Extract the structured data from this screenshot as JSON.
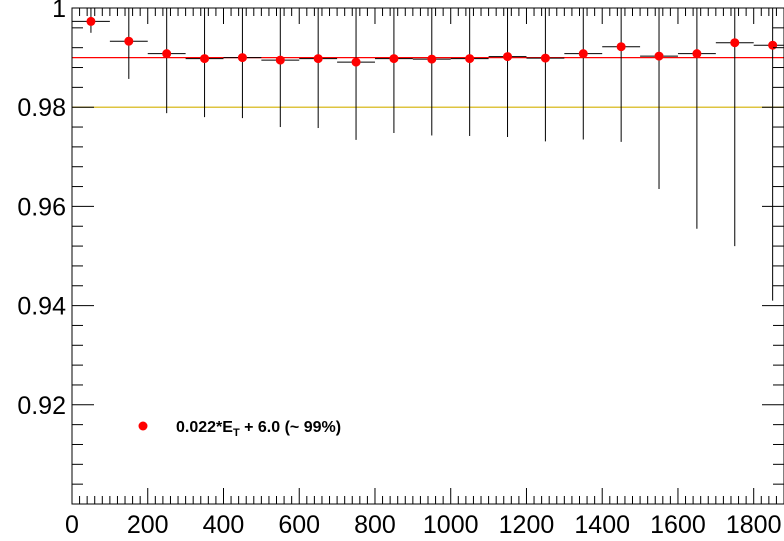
{
  "chart_data": {
    "type": "scatter",
    "title": "",
    "xlabel": "",
    "ylabel": "",
    "xlim": [
      0,
      1880
    ],
    "ylim": [
      0.9,
      1.0
    ],
    "x_ticks": [
      0,
      200,
      400,
      600,
      800,
      1000,
      1200,
      1400,
      1600,
      1800
    ],
    "y_ticks": [
      0.92,
      0.94,
      0.96,
      0.98,
      1
    ],
    "x_tick_labels": [
      "0",
      "200",
      "400",
      "600",
      "800",
      "1000",
      "1200",
      "1400",
      "1600",
      "1800"
    ],
    "y_tick_labels": [
      "0.92",
      "0.94",
      "0.96",
      "0.98",
      "1"
    ],
    "series": [
      {
        "name": "0.022*E_T + 6.0 (~ 99%)",
        "color": "#ff0000",
        "x": [
          50,
          150,
          250,
          350,
          450,
          550,
          650,
          750,
          850,
          950,
          1050,
          1150,
          1250,
          1350,
          1450,
          1550,
          1650,
          1750,
          1850
        ],
        "xerr": [
          50,
          50,
          50,
          50,
          50,
          50,
          50,
          50,
          50,
          50,
          50,
          50,
          50,
          50,
          50,
          50,
          50,
          50,
          50
        ],
        "y": [
          0.9973,
          0.9933,
          0.9908,
          0.9898,
          0.99,
          0.9895,
          0.9898,
          0.9891,
          0.9898,
          0.9897,
          0.9898,
          0.9902,
          0.9899,
          0.9908,
          0.9922,
          0.9903,
          0.9908,
          0.993,
          0.9925
        ],
        "y_low": [
          0.995,
          0.9857,
          0.9788,
          0.978,
          0.9778,
          0.976,
          0.9758,
          0.9734,
          0.9748,
          0.9743,
          0.9742,
          0.974,
          0.9731,
          0.9735,
          0.973,
          0.9635,
          0.9555,
          0.952,
          0.941
        ],
        "y_high": [
          1.0,
          1.0,
          1.0,
          1.0,
          1.0,
          1.0,
          1.0,
          1.0,
          1.0,
          1.0,
          1.0,
          1.0,
          1.0,
          1.0,
          1.0,
          1.0,
          1.0,
          1.0,
          1.0
        ]
      }
    ],
    "reference_lines": [
      {
        "y": 0.99,
        "color": "#ff0000"
      },
      {
        "y": 0.98,
        "color": "#d4b000"
      }
    ],
    "legend": {
      "placement": "lower-left",
      "text_main": "0.022*E",
      "text_sub": "T",
      "text_tail": " + 6.0 (~ 99%)"
    },
    "grid": false
  }
}
